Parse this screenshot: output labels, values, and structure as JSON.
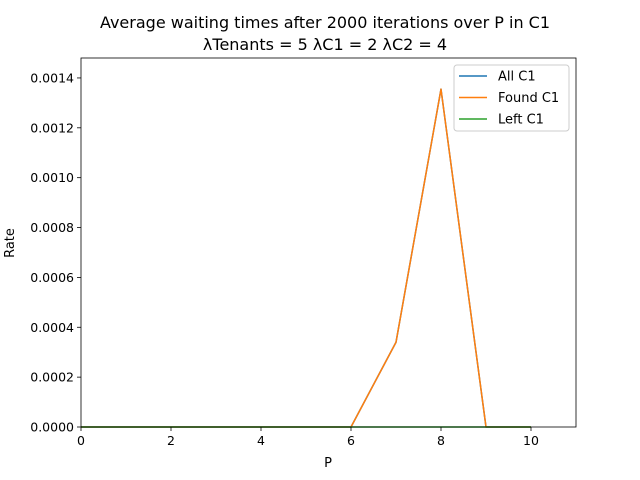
{
  "chart_data": {
    "type": "line",
    "title": "Average waiting times after 2000 iterations over P in C1",
    "subtitle": "λTenants = 5 λC1 = 2 λC2 = 4",
    "xlabel": "P",
    "ylabel": "Rate",
    "xlim": [
      0,
      11
    ],
    "ylim": [
      0,
      0.00148
    ],
    "xticks": [
      0,
      2,
      4,
      6,
      8,
      10
    ],
    "xtick_labels": [
      "0",
      "2",
      "4",
      "6",
      "8",
      "10"
    ],
    "yticks": [
      0,
      0.0002,
      0.0004,
      0.0006,
      0.0008,
      0.001,
      0.0012,
      0.0014
    ],
    "ytick_labels": [
      "0.0000",
      "0.0002",
      "0.0004",
      "0.0006",
      "0.0008",
      "0.0010",
      "0.0012",
      "0.0014"
    ],
    "grid": false,
    "legend_position": "top-right",
    "x": [
      0,
      1,
      2,
      3,
      4,
      5,
      6,
      7,
      8,
      9,
      10
    ],
    "series": [
      {
        "name": "All C1",
        "color": "#1f77b4",
        "values": [
          0,
          0,
          0,
          0,
          0,
          0,
          0,
          0.00034,
          0.001355,
          0,
          0
        ]
      },
      {
        "name": "Found C1",
        "color": "#ff7f0e",
        "values": [
          0,
          0,
          0,
          0,
          0,
          0,
          0,
          0.00034,
          0.001355,
          0,
          0
        ]
      },
      {
        "name": "Left C1",
        "color": "#2ca02c",
        "values": [
          0,
          0,
          0,
          0,
          0,
          0,
          0,
          0,
          0,
          0,
          0
        ]
      }
    ]
  }
}
